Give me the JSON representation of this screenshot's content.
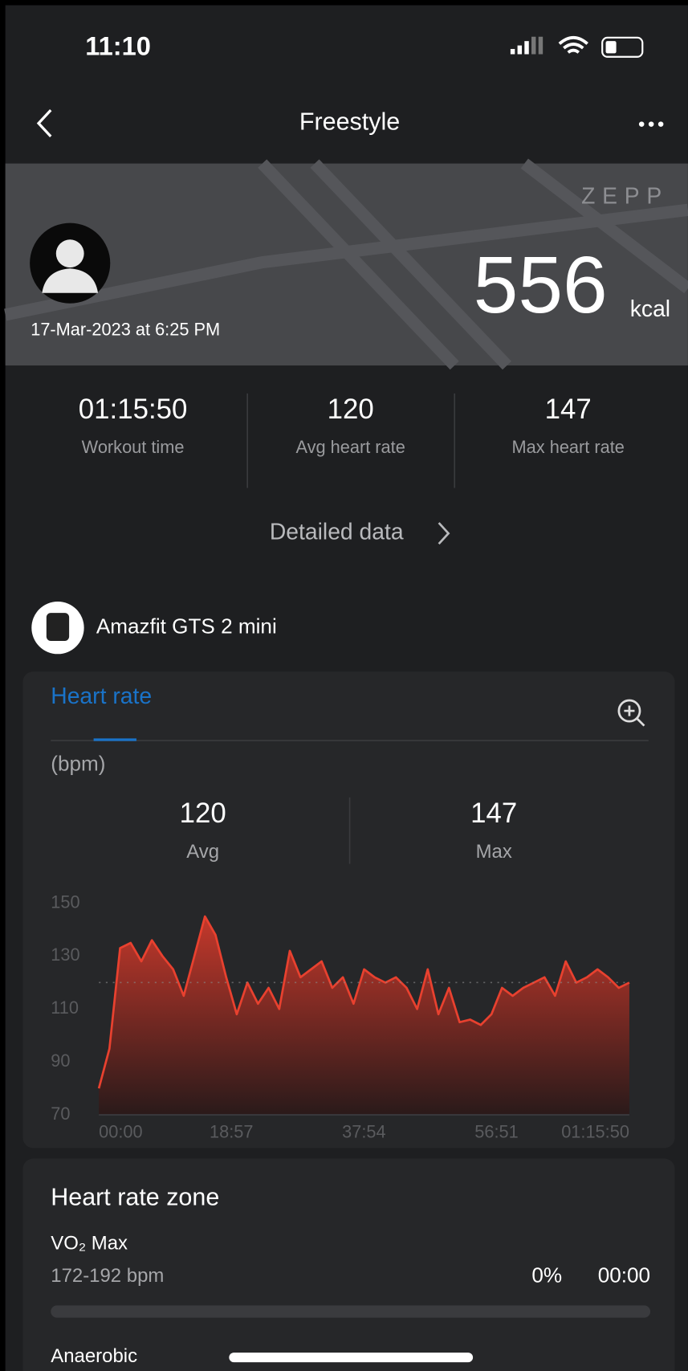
{
  "status_bar": {
    "time": "11:10"
  },
  "nav": {
    "title": "Freestyle"
  },
  "header": {
    "logo": "ZEPP",
    "date": "17-Mar-2023 at 6:25 PM",
    "calories": "556",
    "calories_unit": "kcal"
  },
  "stats": [
    {
      "value": "01:15:50",
      "label": "Workout time"
    },
    {
      "value": "120",
      "label": "Avg heart rate"
    },
    {
      "value": "147",
      "label": "Max heart rate"
    }
  ],
  "detail_link": "Detailed data",
  "device": "Amazfit GTS 2 mini",
  "chart_data": {
    "type": "area",
    "tab": "Heart rate",
    "y_label": "(bpm)",
    "summary": [
      {
        "value": 120,
        "label": "Avg"
      },
      {
        "value": 147,
        "label": "Max"
      }
    ],
    "color": "#e8412f",
    "x": [
      0,
      91,
      182,
      273,
      364,
      455,
      546,
      637,
      728,
      819,
      910,
      1001,
      1092,
      1183,
      1274,
      1365,
      1456,
      1547,
      1638,
      1729,
      1820,
      1911,
      2002,
      2093,
      2184,
      2275,
      2366,
      2457,
      2548,
      2639,
      2730,
      2821,
      2912,
      3003,
      3094,
      3185,
      3276,
      3367,
      3458,
      3549,
      3640,
      3731,
      3822,
      3913,
      4004,
      4095,
      4186,
      4277,
      4368,
      4459,
      4550
    ],
    "series": [
      {
        "name": "Heart rate",
        "values": [
          80,
          95,
          133,
          135,
          128,
          136,
          130,
          125,
          115,
          130,
          145,
          138,
          122,
          108,
          120,
          112,
          118,
          110,
          132,
          122,
          125,
          128,
          118,
          122,
          112,
          125,
          122,
          120,
          122,
          118,
          110,
          125,
          108,
          118,
          105,
          106,
          104,
          108,
          118,
          115,
          118,
          120,
          122,
          115,
          128,
          120,
          122,
          125,
          122,
          118,
          120
        ]
      }
    ],
    "xlim": [
      0,
      4550
    ],
    "xticks": [
      {
        "value": 0,
        "label": "00:00"
      },
      {
        "value": 1137,
        "label": "18:57"
      },
      {
        "value": 2274,
        "label": "37:54"
      },
      {
        "value": 3411,
        "label": "56:51"
      },
      {
        "value": 4550,
        "label": "01:15:50"
      }
    ],
    "ylim": [
      70,
      150
    ],
    "yticks": [
      70,
      90,
      110,
      130,
      150
    ]
  },
  "zones": {
    "title": "Heart rate zone",
    "items": [
      {
        "name": "VO₂ Max",
        "range": "172-192 bpm",
        "percent": "0%",
        "time": "00:00"
      },
      {
        "name": "Anaerobic"
      }
    ]
  }
}
